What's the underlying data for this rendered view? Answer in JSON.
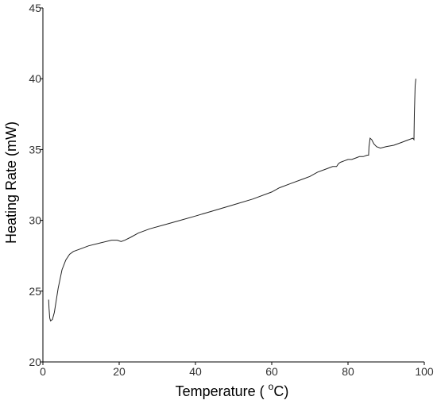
{
  "chart_data": {
    "type": "line",
    "title": "",
    "xlabel_text": "Temperature ( ",
    "xlabel_unit": "C)",
    "xlabel_degree": "o",
    "ylabel": "Heating Rate (mW)",
    "xlim": [
      0,
      100
    ],
    "ylim": [
      20,
      45
    ],
    "xticks": [
      0,
      20,
      40,
      60,
      80,
      100
    ],
    "yticks": [
      20,
      25,
      30,
      35,
      40,
      45
    ],
    "grid": false,
    "line_color": "#222222",
    "series": [
      {
        "x": [
          1.5,
          1.6,
          1.8,
          2.0,
          2.5,
          3.0,
          4.0,
          5.0,
          6.0,
          7.0,
          8.0,
          10.0,
          12.0,
          15.0,
          18.0,
          19.5,
          20.5,
          21.5,
          23.0,
          25.0,
          28.0,
          32.0,
          36.0,
          40.0,
          45.0,
          50.0,
          55.0,
          60.0,
          62.0,
          65.0,
          68.0,
          70.0,
          72.0,
          74.0,
          76.0,
          77.0,
          77.5,
          78.0,
          79.0,
          80.0,
          81.0,
          82.0,
          83.0,
          84.0,
          85.0,
          85.4,
          85.5,
          85.8,
          86.2,
          86.8,
          87.5,
          88.5,
          90.0,
          92.0,
          94.0,
          96.0,
          97.0,
          97.3,
          97.4,
          97.6,
          97.8
        ],
        "y": [
          24.4,
          23.8,
          23.1,
          22.9,
          23.0,
          23.5,
          25.2,
          26.5,
          27.2,
          27.6,
          27.8,
          28.0,
          28.2,
          28.4,
          28.6,
          28.6,
          28.5,
          28.6,
          28.8,
          29.1,
          29.4,
          29.7,
          30.0,
          30.3,
          30.7,
          31.1,
          31.5,
          32.0,
          32.3,
          32.6,
          32.9,
          33.1,
          33.4,
          33.6,
          33.8,
          33.8,
          34.0,
          34.1,
          34.2,
          34.3,
          34.3,
          34.4,
          34.5,
          34.5,
          34.6,
          34.6,
          35.2,
          35.8,
          35.7,
          35.4,
          35.2,
          35.1,
          35.2,
          35.3,
          35.5,
          35.7,
          35.8,
          35.7,
          37.5,
          39.5,
          40.0
        ]
      }
    ]
  }
}
